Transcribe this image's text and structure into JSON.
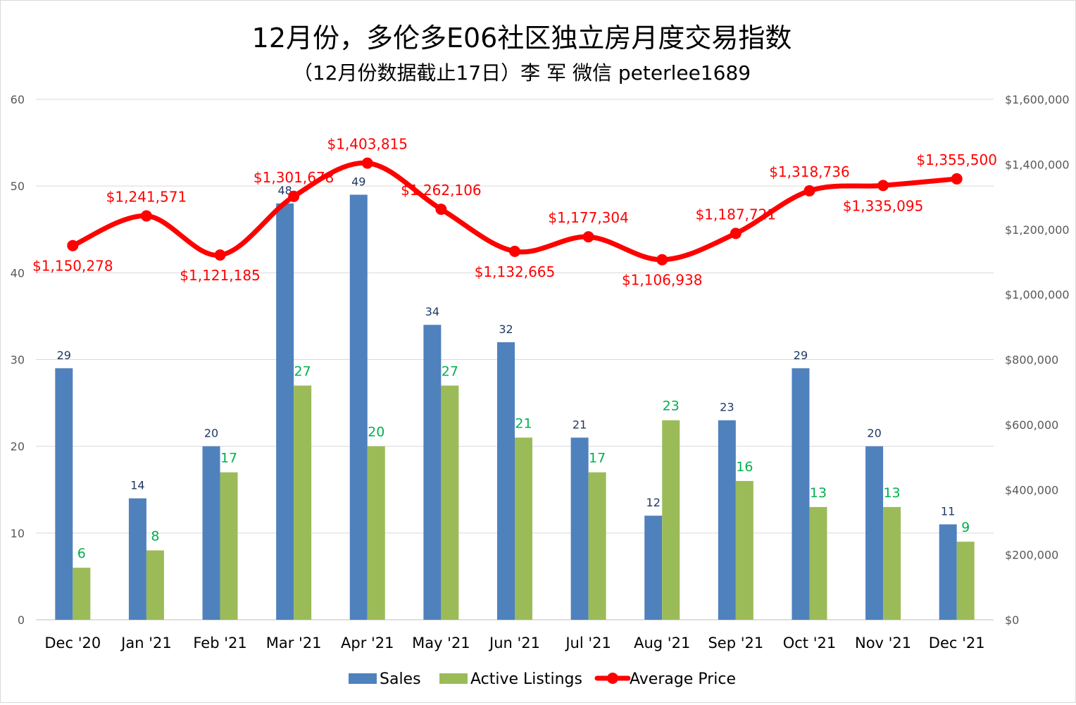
{
  "chart_data": {
    "type": "bar",
    "title": "12月份，多伦多E06社区独立房月度交易指数",
    "subtitle": "（12月份数据截止17日）李 军 微信 peterlee1689",
    "categories": [
      "Dec '20",
      "Jan '21",
      "Feb '21",
      "Mar '21",
      "Apr '21",
      "May '21",
      "Jun '21",
      "Jul '21",
      "Aug '21",
      "Sep '21",
      "Oct '21",
      "Nov '21",
      "Dec '21"
    ],
    "series": [
      {
        "name": "Sales",
        "type": "bar",
        "axis": "left",
        "color": "#4f81bd",
        "values": [
          29,
          14,
          20,
          48,
          49,
          34,
          32,
          21,
          12,
          23,
          29,
          20,
          11
        ],
        "labels": [
          "29",
          "14",
          "20",
          "48",
          "49",
          "34",
          "32",
          "21",
          "12",
          "23",
          "29",
          "20",
          "11"
        ]
      },
      {
        "name": "Active Listings",
        "type": "bar",
        "axis": "left",
        "color": "#9bbb59",
        "values": [
          6,
          8,
          17,
          27,
          20,
          27,
          21,
          17,
          23,
          16,
          13,
          13,
          9
        ],
        "labels": [
          "6",
          "8",
          "17",
          "27",
          "20",
          "27",
          "21",
          "17",
          "23",
          "16",
          "13",
          "13",
          "9"
        ]
      },
      {
        "name": "Average Price",
        "type": "line",
        "axis": "right",
        "color": "#ff0000",
        "values": [
          1150278,
          1241571,
          1121185,
          1301678,
          1403815,
          1262106,
          1132665,
          1177304,
          1106938,
          1187721,
          1318736,
          1335095,
          1355500
        ],
        "labels": [
          "$1,150,278",
          "$1,241,571",
          "$1,121,185",
          "$1,301,678",
          "$1,403,815",
          "$1,262,106",
          "$1,132,665",
          "$1,177,304",
          "$1,106,938",
          "$1,187,721",
          "$1,318,736",
          "$1,335,095",
          "$1,355,500"
        ]
      }
    ],
    "y_left": {
      "ylim": [
        0,
        60
      ],
      "ticks": [
        0,
        10,
        20,
        30,
        40,
        50,
        60
      ],
      "tick_labels": [
        "0",
        "10",
        "20",
        "30",
        "40",
        "50",
        "60"
      ]
    },
    "y_right": {
      "ylim": [
        0,
        1600000
      ],
      "ticks": [
        0,
        200000,
        400000,
        600000,
        800000,
        1000000,
        1200000,
        1400000,
        1600000
      ],
      "tick_labels": [
        "$0",
        "$200,000",
        "$400,000",
        "$600,000",
        "$800,000",
        "$1,000,000",
        "$1,200,000",
        "$1,400,000",
        "$1,600,000"
      ]
    },
    "grid": true,
    "legend": "bottom",
    "legend_entries": [
      "Sales",
      "Active Listings",
      "Average Price"
    ]
  }
}
